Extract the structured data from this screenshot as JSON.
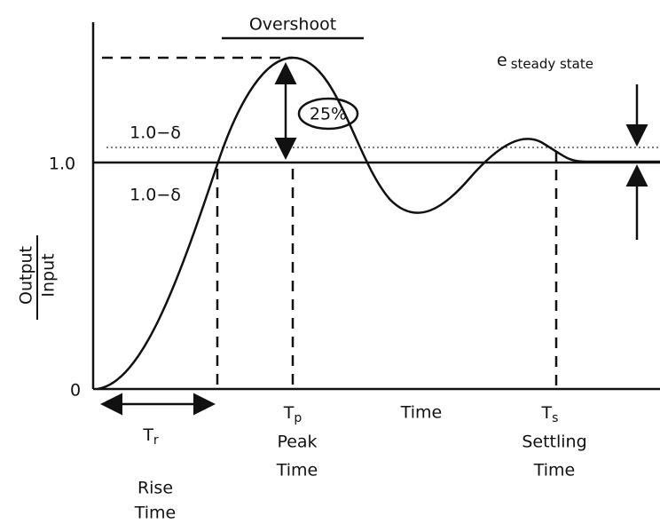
{
  "overshoot": {
    "label": "Overshoot",
    "percent": "25%"
  },
  "y_axis": {
    "label_numerator": "Output",
    "label_denominator": "Input",
    "upper_band": "1.0−δ",
    "one": "1.0",
    "lower_band": "1.0−δ",
    "zero": "0"
  },
  "x_axis": {
    "label": "Time"
  },
  "rise_time": {
    "symbol": "T",
    "subscript": "r",
    "line1": "Rise",
    "line2": "Time"
  },
  "peak_time": {
    "symbol": "T",
    "subscript": "p",
    "line1": "Peak",
    "line2": "Time"
  },
  "settling_time": {
    "symbol": "T",
    "subscript": "s",
    "line1": "Settling",
    "line2": "Time"
  },
  "steady_state_error": {
    "symbol": "e",
    "subscript": "steady state"
  }
}
